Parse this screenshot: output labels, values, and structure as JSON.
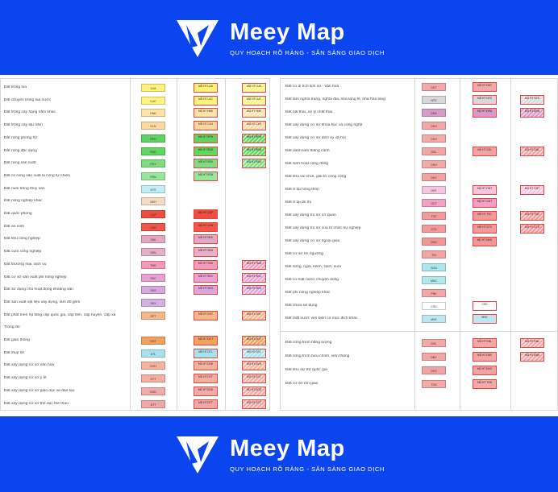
{
  "brand": {
    "name": "Meey Map",
    "tagline": "QUY HOẠCH RÕ RÀNG - SẴN SÀNG GIAO DỊCH",
    "accent": "#0b45f0"
  },
  "legend_left": [
    {
      "label": "Đất trồng lúa",
      "code": "LUA",
      "color": "#fff27a",
      "mid": "MŨ HT LUA",
      "has_hatch": true
    },
    {
      "label": "Đất chuyên trồng lúa nước",
      "code": "LUC",
      "color": "#fff47d",
      "mid": "MŨ HT LUC",
      "has_hatch": true
    },
    {
      "label": "Đất trồng cây hàng năm khác",
      "code": "HNK",
      "color": "#ffe4a8",
      "mid": "MŨ HT HNK",
      "has_hatch": true
    },
    {
      "label": "Đất trồng cây lâu năm",
      "code": "CLN",
      "color": "#ffd8a0",
      "mid": "MŨ HT CLN",
      "has_hatch": true
    },
    {
      "label": "Đất rừng phòng hộ",
      "code": "RPH",
      "color": "#5fd35f",
      "mid": "MŨ HT RPH",
      "has_hatch": true
    },
    {
      "label": "Đất rừng đặc dụng",
      "code": "RDD",
      "color": "#5ed85e",
      "mid": "MŨ HT RDD",
      "has_hatch": true
    },
    {
      "label": "Đất rừng sản xuất",
      "code": "RSX",
      "color": "#7fdc7f",
      "mid": "MŨ HT RSX",
      "has_hatch": true
    },
    {
      "label": "Đất có rừng sản xuất là rừng tự nhiên",
      "code": "RSN",
      "color": "#98e698",
      "mid": "MŨ HT RSN",
      "has_hatch": false
    },
    {
      "label": "Đất nuôi trồng thủy sản",
      "code": "NTS",
      "color": "#bff0f5",
      "mid": "",
      "has_hatch": true
    },
    {
      "label": "Đất nông nghiệp khác",
      "code": "NKH",
      "color": "#f5dcc0",
      "mid": "",
      "has_hatch": true
    },
    {
      "label": "Đất quốc phòng",
      "code": "CQP",
      "color": "#f04d3f",
      "mid": "MŨ HT CQP",
      "has_hatch": false
    },
    {
      "label": "Đất an ninh",
      "code": "CAN",
      "color": "#f35547",
      "mid": "MŨ HT CAN",
      "has_hatch": false
    },
    {
      "label": "Đất khu công nghiệp",
      "code": "SKK",
      "color": "#e7a6c0",
      "mid": "MŨ HT SKK",
      "has_hatch": false
    },
    {
      "label": "Đất cụm công nghiệp",
      "code": "SKN",
      "color": "#e8b0c6",
      "mid": "MŨ HT SKN",
      "has_hatch": false
    },
    {
      "label": "Đất thương mại, dịch vụ",
      "code": "TMD",
      "color": "#f69ab8",
      "mid": "MŨ HT TMD",
      "has_hatch": true
    },
    {
      "label": "Đất cơ sở sản xuất phi nông nghiệp",
      "code": "SKC",
      "color": "#e9a1d5",
      "mid": "MŨ HT SKC",
      "has_hatch": true
    },
    {
      "label": "Đất sử dụng cho hoạt động khoáng sản",
      "code": "SKS",
      "color": "#d9a7df",
      "mid": "MŨ HT SKS",
      "has_hatch": true
    },
    {
      "label": "Đất sản xuất vật liệu xây dựng, làm đồ gốm",
      "code": "SKX",
      "color": "#d5b0e2",
      "mid": "",
      "has_hatch": true
    },
    {
      "label": "Đất phát triển hạ tầng cấp quốc gia, cấp tỉnh, cấp huyện, cấp xã",
      "code": "DPT",
      "color": "#f8b68a",
      "mid": "MŨ HT DHT",
      "has_hatch": true
    },
    {
      "label": "Trong đó:",
      "code": "",
      "color": "",
      "mid": "",
      "has_hatch": false
    },
    {
      "label": "Đất giao thông",
      "code": "DGT",
      "color": "#f3a15e",
      "mid": "MŨ HT DGT",
      "has_hatch": true
    },
    {
      "label": "Đất thuỷ lợi",
      "code": "DTL",
      "color": "#a7e3ef",
      "mid": "MŨ HT DTL",
      "has_hatch": true
    },
    {
      "label": "Đất xây dựng cơ sở văn hoá",
      "code": "DVH",
      "color": "#f5b39c",
      "mid": "MŨ HT DVH",
      "has_hatch": true
    },
    {
      "label": "Đất xây dựng cơ sở y tế",
      "code": "DYT",
      "color": "#f6aea1",
      "mid": "MŨ HT DYT",
      "has_hatch": true
    },
    {
      "label": "Đất xây dựng cơ sở giáo dục và đào tạo",
      "code": "DGD",
      "color": "#f4aaa7",
      "mid": "MŨ HT DGD",
      "has_hatch": true
    },
    {
      "label": "Đất xây dựng cơ sở thể dục thể thao",
      "code": "DTT",
      "color": "#f3a6a6",
      "mid": "MŨ HT DTT",
      "has_hatch": true
    }
  ],
  "legend_right_top": [
    {
      "label": "Đất có di tích lịch sử - văn hoá",
      "code": "DDT",
      "color": "#f5a8a8",
      "mid": "MŨ HT DDT",
      "has_hatch": false
    },
    {
      "label": "Đất làm nghĩa trang, nghĩa địa, nhà tang lễ, nhà hỏa táng",
      "code": "NTD",
      "color": "#d8d8d8",
      "mid": "MŨ HT NTD",
      "has_hatch": true
    },
    {
      "label": "Đất bãi thải, xử lý chất thải",
      "code": "DRA",
      "color": "#d99ac9",
      "mid": "MŨ HT DRA",
      "has_hatch": true
    },
    {
      "label": "Đất xây dựng cơ sở khoa học và công nghệ",
      "code": "DKH",
      "color": "#f4a5a5",
      "mid": "",
      "has_hatch": true
    },
    {
      "label": "Đất xây dựng cơ sở dịch vụ xã hội",
      "code": "DXH",
      "color": "#f5a9a9",
      "mid": "",
      "has_hatch": true
    },
    {
      "label": "Đất danh lam thắng cảnh",
      "code": "DDL",
      "color": "#f4a4a4",
      "mid": "MŨ HT DDL",
      "has_hatch": true
    },
    {
      "label": "Đất sinh hoạt cộng đồng",
      "code": "DSH",
      "color": "#f5a8a8",
      "mid": "",
      "has_hatch": true
    },
    {
      "label": "Đất khu vui chơi, giải trí công cộng",
      "code": "DKV",
      "color": "#f4a2a2",
      "mid": "",
      "has_hatch": true
    },
    {
      "label": "Đất ở tại nông thôn",
      "code": "ONT",
      "color": "#f7c5e0",
      "mid": "MŨ HT ONT",
      "has_hatch": true
    },
    {
      "label": "Đất ở tại đô thị",
      "code": "ODT",
      "color": "#f4a0c5",
      "mid": "MŨ HT ODT",
      "has_hatch": false
    },
    {
      "label": "Đất xây dựng trụ sở cơ quan",
      "code": "TSC",
      "color": "#f59a9a",
      "mid": "MŨ HT TSC",
      "has_hatch": true
    },
    {
      "label": "Đất xây dựng trụ sở của tổ chức sự nghiệp",
      "code": "DTS",
      "color": "#f39999",
      "mid": "MŨ HT DTS",
      "has_hatch": true
    },
    {
      "label": "Đất xây dựng cơ sở ngoại giao",
      "code": "DNG",
      "color": "#f29696",
      "mid": "MŨ HT DNG",
      "has_hatch": false
    },
    {
      "label": "Đất cơ sở tín ngưỡng",
      "code": "TIN",
      "color": "#f4a4a4",
      "mid": "",
      "has_hatch": true
    },
    {
      "label": "Đất sông, ngòi, kênh, rạch, suối",
      "code": "SON",
      "color": "#a8e7ee",
      "mid": "",
      "has_hatch": true
    },
    {
      "label": "Đất có mặt nước chuyên dùng",
      "code": "MNC",
      "color": "#b1e9ef",
      "mid": "",
      "has_hatch": true
    },
    {
      "label": "Đất phi nông nghiệp khác",
      "code": "PNK",
      "color": "#f5a6a6",
      "mid": "",
      "has_hatch": true
    },
    {
      "label": "Đất chưa sử dụng",
      "code": "CSD",
      "color": "#ffffff",
      "mid": "CSD",
      "has_hatch": false
    },
    {
      "label": "Đất mặt nước ven biển có mục đích khác",
      "code": "MVK",
      "color": "#bde6f2",
      "mid": "MVK",
      "has_hatch": false
    }
  ],
  "legend_right_bottom": [
    {
      "label": "Đất công trình năng lượng",
      "code": "DNL",
      "color": "#f5a8a8",
      "mid": "MŨ HT DNL",
      "has_hatch": true
    },
    {
      "label": "Đất công trình bưu chính, viễn thông",
      "code": "DBV",
      "color": "#f4a5a5",
      "mid": "MŨ HT DBV",
      "has_hatch": true
    },
    {
      "label": "Đất khu dự trữ quốc gia",
      "code": "DKG",
      "color": "#f3a3a3",
      "mid": "MŨ HT DKG",
      "has_hatch": false
    },
    {
      "label": "Đất cơ sở tôn giáo",
      "code": "TON",
      "color": "#f5a9a9",
      "mid": "MŨ HT TON",
      "has_hatch": false
    }
  ]
}
